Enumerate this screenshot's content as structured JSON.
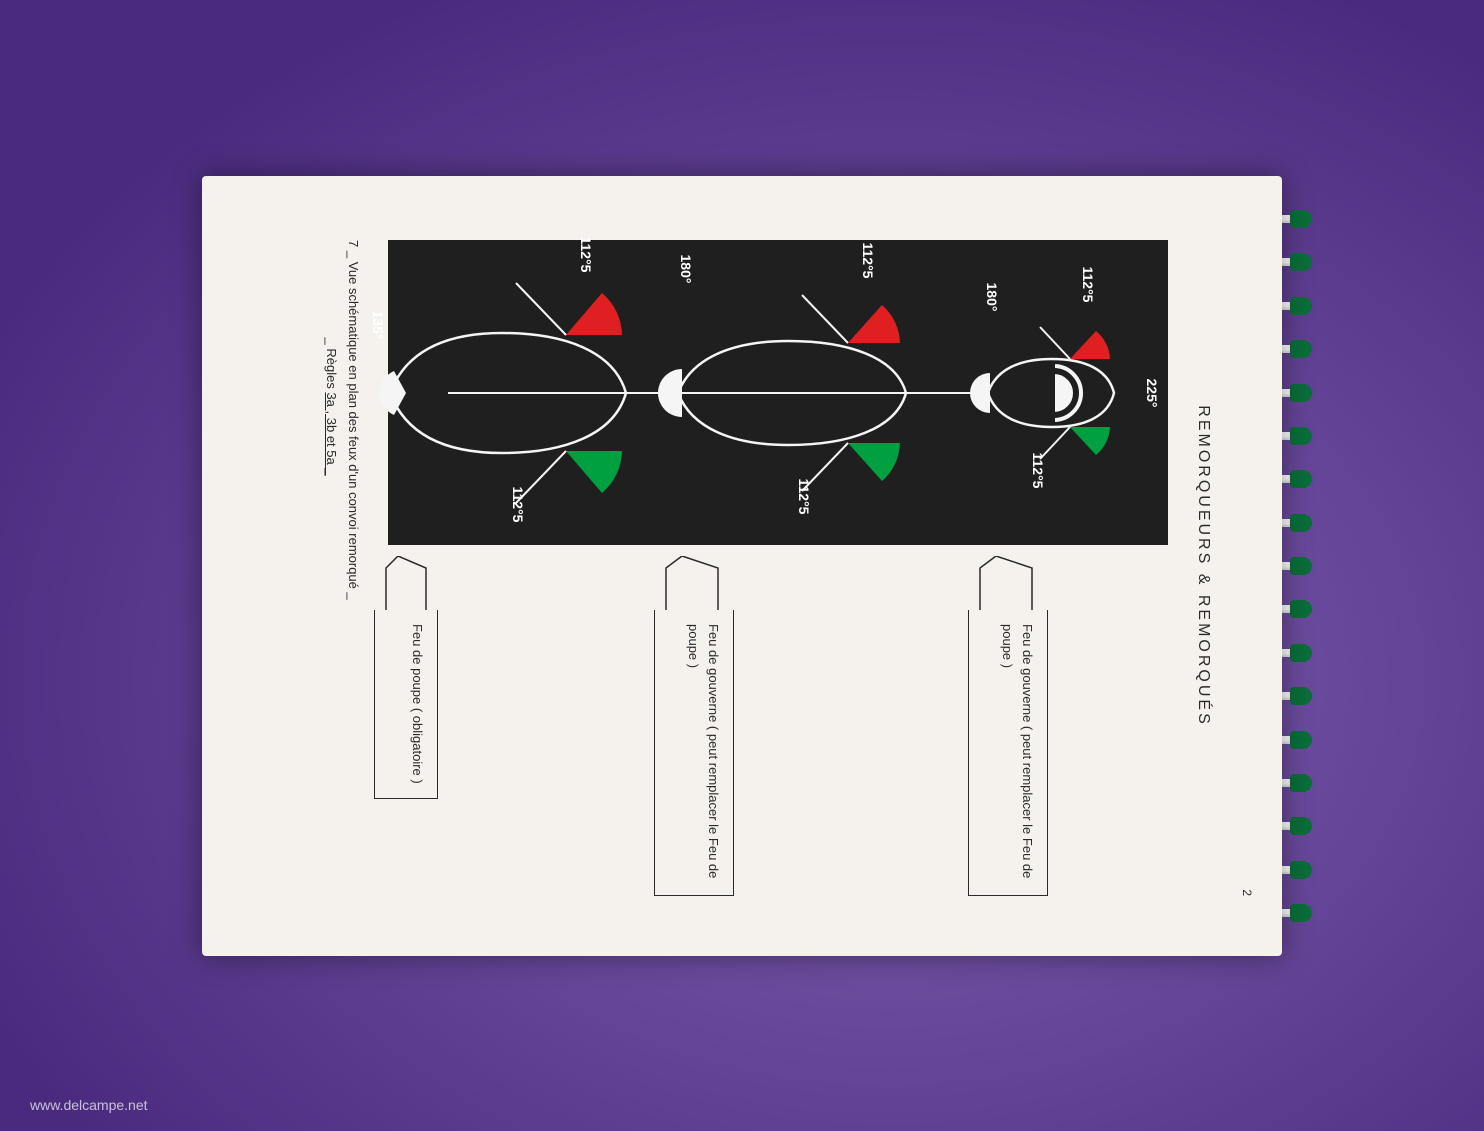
{
  "page": {
    "number": "2",
    "section_title": "REMORQUEURS & REMORQUÉS",
    "caption_prefix": "7 _ ",
    "caption_main": "Vue schématique en plan des feux d'un convoi remorqué _",
    "caption_rules_label": "_ Règles ",
    "caption_rules": "3a , 3b et 5a _"
  },
  "diagram": {
    "panel_bg": "#1f1f1f",
    "line_color": "#f5f5f5",
    "port_color": "#e02020",
    "starboard_color": "#00a040",
    "label_color": "#ffffff",
    "tugboat": {
      "masthead_angle": "225°",
      "port_angle": "112°5",
      "starboard_angle": "112°5",
      "stern_angle": "180°",
      "callout": "Feu de gouverne ( peut remplacer le Feu de poupe )"
    },
    "towed_mid": {
      "port_angle": "112°5",
      "starboard_angle": "112°5",
      "stern_angle": "180°",
      "callout": "Feu de gouverne ( peut remplacer le Feu de poupe )"
    },
    "towed_last": {
      "port_angle": "112°5",
      "starboard_angle": "112°5",
      "stern_angle": "135°",
      "callout": "Feu de poupe ( obligatoire )"
    }
  },
  "binding": {
    "coil_count": 17,
    "coil_color": "#0a6e3a"
  },
  "watermark": "www.delcampe.net"
}
